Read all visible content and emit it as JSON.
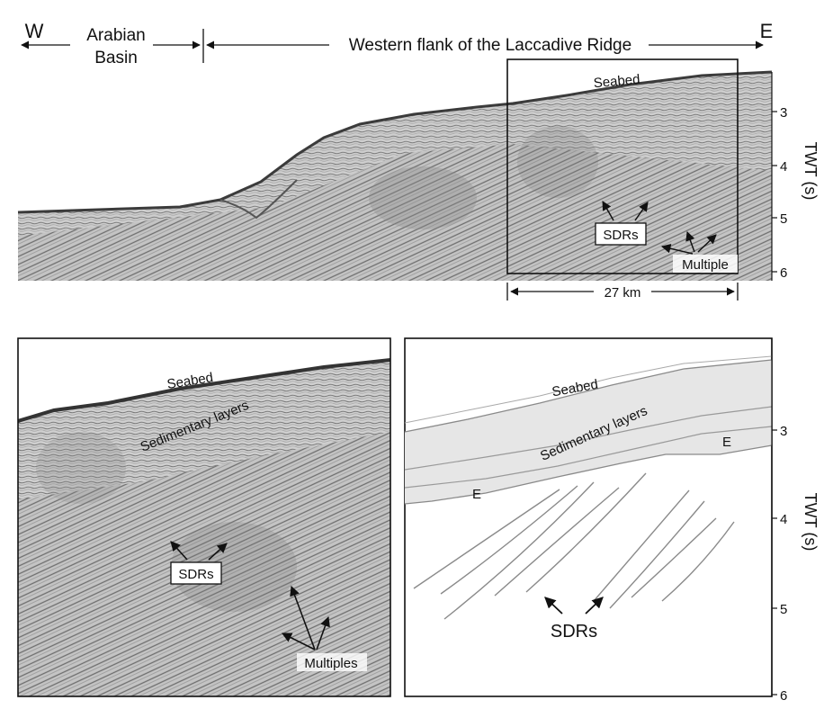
{
  "top": {
    "west": "W",
    "east": "E",
    "basin_line1": "Arabian",
    "basin_line2": "Basin",
    "ridge": "Western flank of the Laccadive Ridge",
    "seabed": "Seabed",
    "sdrs": "SDRs",
    "multiple": "Multiple",
    "scale": "27 km",
    "twt_label": "TWT (s)",
    "twt_ticks": [
      "3",
      "4",
      "5",
      "6"
    ]
  },
  "bottom_left": {
    "seabed": "Seabed",
    "sedimentary": "Sedimentary layers",
    "sdrs": "SDRs",
    "multiples": "Multiples"
  },
  "bottom_right": {
    "seabed": "Seabed",
    "sedimentary": "Sedimentary layers",
    "e_left": "E",
    "e_right": "E",
    "sdrs": "SDRs",
    "twt_label": "TWT (s)",
    "twt_ticks": [
      "3",
      "4",
      "5",
      "6"
    ]
  },
  "colors": {
    "seismic_light": "#d9d9d9",
    "seismic_dark": "#5a5a5a",
    "sediment_fill": "#e6e6e6",
    "interpretation_line": "#888888"
  }
}
